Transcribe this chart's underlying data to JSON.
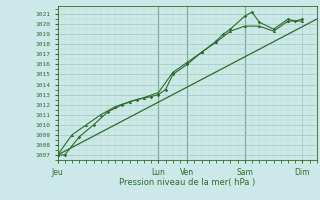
{
  "background_color": "#cce8e8",
  "grid_color_major": "#99ccbb",
  "grid_color_minor": "#bbddcc",
  "line_color": "#2d6b2d",
  "ylabel_values": [
    1007,
    1008,
    1009,
    1010,
    1011,
    1012,
    1013,
    1014,
    1015,
    1016,
    1017,
    1018,
    1019,
    1020,
    1021
  ],
  "ylim": [
    1006.5,
    1021.8
  ],
  "xlabel": "Pression niveau de la mer( hPa )",
  "xtick_labels": [
    "Jeu",
    "Lun",
    "Ven",
    "Sam",
    "Dim"
  ],
  "xtick_positions": [
    0,
    3.5,
    4.5,
    6.5,
    8.5
  ],
  "xlim": [
    0,
    9.0
  ],
  "line1_x": [
    0,
    0.25,
    0.75,
    1.25,
    1.75,
    2.25,
    2.75,
    3.25,
    3.5,
    3.75,
    4.0,
    4.5,
    5.0,
    5.5,
    5.75,
    6.0,
    6.5,
    6.75,
    7.0,
    7.5,
    8.0,
    8.25,
    8.5
  ],
  "line1_y": [
    1007,
    1007,
    1008.8,
    1010,
    1011.3,
    1012,
    1012.5,
    1012.8,
    1013,
    1013.5,
    1015,
    1016,
    1017.2,
    1018.3,
    1019,
    1019.5,
    1020.8,
    1021.2,
    1020.2,
    1019.5,
    1020.5,
    1020.3,
    1020.5
  ],
  "line2_x": [
    0,
    0.5,
    1.0,
    1.5,
    2.0,
    2.5,
    3.0,
    3.5,
    4.0,
    4.5,
    5.0,
    5.5,
    6.0,
    6.5,
    7.0,
    7.5,
    8.0,
    8.5
  ],
  "line2_y": [
    1007,
    1009,
    1010,
    1011,
    1011.8,
    1012.3,
    1012.7,
    1013.2,
    1015.2,
    1016.2,
    1017.2,
    1018.2,
    1019.3,
    1019.8,
    1019.8,
    1019.3,
    1020.3,
    1020.3
  ],
  "line3_x": [
    0,
    9.0
  ],
  "line3_y": [
    1007,
    1020.5
  ],
  "vline_positions": [
    3.5,
    4.5,
    6.5
  ],
  "figsize": [
    3.2,
    2.0
  ],
  "dpi": 100
}
